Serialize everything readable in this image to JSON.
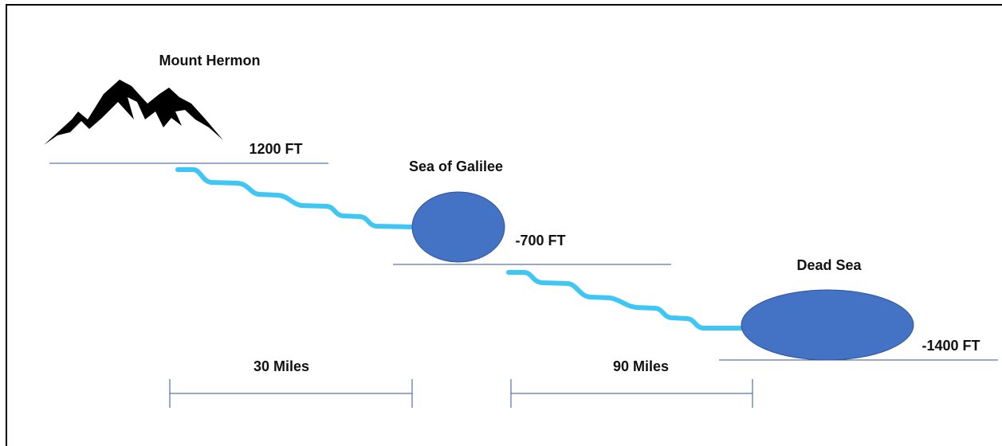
{
  "nodes": [
    {
      "label": "Mount Hermon",
      "elevation": "1200 FT"
    },
    {
      "label": "Sea of Galilee",
      "elevation": "-700 FT"
    },
    {
      "label": "Dead Sea",
      "elevation": "-1400 FT"
    }
  ],
  "distances": [
    "30 Miles",
    "90 Miles"
  ]
}
